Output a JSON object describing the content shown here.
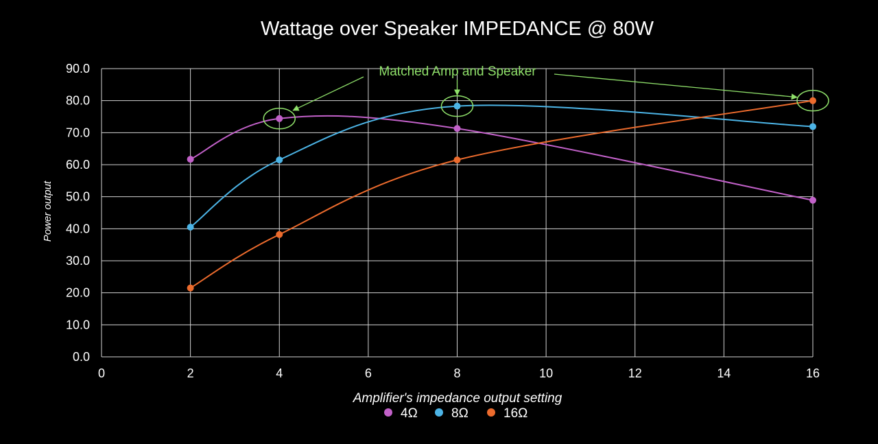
{
  "chart_data": {
    "type": "line",
    "title": "Wattage over Speaker IMPEDANCE @ 80W",
    "xlabel": "Amplifier's impedance output setting",
    "ylabel": "Power output",
    "xlim": [
      0,
      16
    ],
    "ylim": [
      0,
      90
    ],
    "x_ticks": [
      "0",
      "2",
      "4",
      "6",
      "8",
      "10",
      "12",
      "14",
      "16"
    ],
    "y_ticks": [
      "0.0",
      "10.0",
      "20.0",
      "30.0",
      "40.0",
      "50.0",
      "60.0",
      "70.0",
      "80.0",
      "90.0"
    ],
    "grid": true,
    "legend_position": "bottom",
    "x": [
      2,
      4,
      8,
      16
    ],
    "series": [
      {
        "name": "4Ω",
        "color": "#c261c9",
        "values": [
          61.7,
          74.4,
          71.3,
          48.9
        ]
      },
      {
        "name": "8Ω",
        "color": "#4cb4e6",
        "values": [
          40.5,
          61.5,
          78.3,
          71.9
        ]
      },
      {
        "name": "16Ω",
        "color": "#ec6b2d",
        "values": [
          21.5,
          38.2,
          61.5,
          80.0
        ]
      }
    ],
    "annotation": {
      "text": "Matched Amp and Speaker",
      "color": "#8fe06a",
      "targets": [
        {
          "series": "4Ω",
          "x": 4
        },
        {
          "series": "8Ω",
          "x": 8
        },
        {
          "series": "16Ω",
          "x": 16
        }
      ]
    }
  }
}
